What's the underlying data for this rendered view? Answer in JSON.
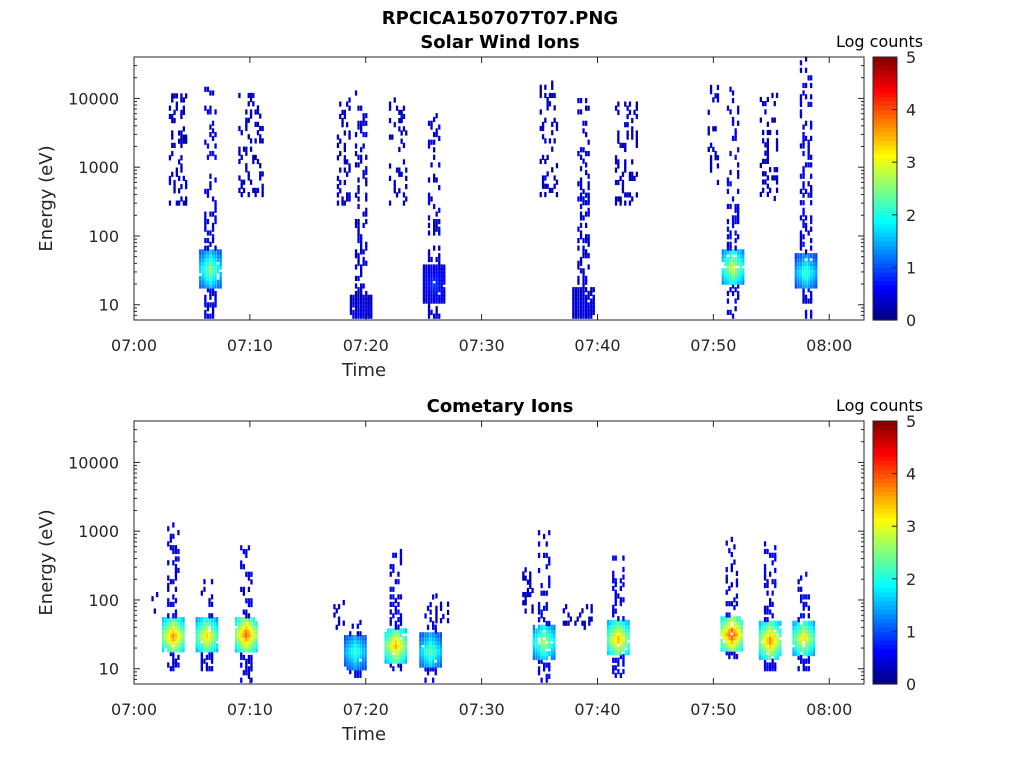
{
  "figure": {
    "title": "RPCICA150707T07.PNG"
  },
  "chart_data": [
    {
      "type": "heatmap",
      "title": "Solar Wind Ions",
      "xlabel": "Time",
      "ylabel": "Energy (eV)",
      "x_ticks": [
        "07:00",
        "07:10",
        "07:20",
        "07:30",
        "07:40",
        "07:50",
        "08:00"
      ],
      "x_range_minutes": [
        0,
        63
      ],
      "y_scale": "log",
      "y_ticks": [
        "10",
        "100",
        "1000",
        "10000"
      ],
      "ylim": [
        6,
        40000
      ],
      "colorbar": {
        "label": "Log counts",
        "ticks": [
          "0",
          "1",
          "2",
          "3",
          "4",
          "5"
        ],
        "range": [
          0,
          5
        ],
        "colormap": "jet"
      },
      "bursts": [
        {
          "t": 6.5,
          "emin": 6,
          "emax": 15000,
          "core_e": 33,
          "core_level": 2.6,
          "level": 0.3
        },
        {
          "t": 19.5,
          "emin": 6,
          "emax": 12000,
          "core_e": 8,
          "core_level": 0.6,
          "level": 0.2
        },
        {
          "t": 25.8,
          "emin": 6,
          "emax": 6000,
          "core_e": 20,
          "core_level": 0.9,
          "level": 0.2
        },
        {
          "t": 38.7,
          "emin": 6,
          "emax": 10000,
          "core_e": 10,
          "core_level": 0.6,
          "level": 0.2
        },
        {
          "t": 51.6,
          "emin": 6,
          "emax": 15000,
          "core_e": 35,
          "core_level": 3.0,
          "level": 0.3
        },
        {
          "t": 57.9,
          "emin": 6,
          "emax": 38000,
          "core_e": 30,
          "core_level": 2.2,
          "level": 0.3
        }
      ],
      "sparse_bands": [
        {
          "t0": 3.0,
          "t1": 4.5,
          "emin": 300,
          "emax": 12000
        },
        {
          "t0": 9.0,
          "t1": 11.0,
          "emin": 400,
          "emax": 12000
        },
        {
          "t0": 17.5,
          "t1": 18.5,
          "emin": 300,
          "emax": 10000
        },
        {
          "t0": 22.0,
          "t1": 23.5,
          "emin": 300,
          "emax": 10000
        },
        {
          "t0": 35.0,
          "t1": 36.5,
          "emin": 400,
          "emax": 20000
        },
        {
          "t0": 41.5,
          "t1": 43.5,
          "emin": 300,
          "emax": 9000
        },
        {
          "t0": 49.5,
          "t1": 50.5,
          "emin": 600,
          "emax": 15000
        },
        {
          "t0": 54.0,
          "t1": 55.5,
          "emin": 350,
          "emax": 12000
        }
      ]
    },
    {
      "type": "heatmap",
      "title": "Cometary Ions",
      "xlabel": "Time",
      "ylabel": "Energy (eV)",
      "x_ticks": [
        "07:00",
        "07:10",
        "07:20",
        "07:30",
        "07:40",
        "07:50",
        "08:00"
      ],
      "x_range_minutes": [
        0,
        63
      ],
      "y_scale": "log",
      "y_ticks": [
        "10",
        "100",
        "1000",
        "10000"
      ],
      "ylim": [
        6,
        40000
      ],
      "colorbar": {
        "label": "Log counts",
        "ticks": [
          "0",
          "1",
          "2",
          "3",
          "4",
          "5"
        ],
        "range": [
          0,
          5
        ],
        "colormap": "jet"
      },
      "bursts": [
        {
          "t": 3.3,
          "emin": 10,
          "emax": 1300,
          "core_e": 30,
          "core_level": 3.8,
          "level": 0.3
        },
        {
          "t": 6.2,
          "emin": 10,
          "emax": 250,
          "core_e": 30,
          "core_level": 3.4,
          "level": 0.3
        },
        {
          "t": 9.6,
          "emin": 6,
          "emax": 600,
          "core_e": 32,
          "core_level": 4.0,
          "level": 0.3
        },
        {
          "t": 19.0,
          "emin": 8,
          "emax": 50,
          "core_e": 18,
          "core_level": 2.2,
          "level": 0.3
        },
        {
          "t": 22.5,
          "emin": 10,
          "emax": 700,
          "core_e": 22,
          "core_level": 3.6,
          "level": 0.3
        },
        {
          "t": 25.5,
          "emin": 6,
          "emax": 120,
          "core_e": 18,
          "core_level": 2.4,
          "level": 0.3
        },
        {
          "t": 35.3,
          "emin": 6,
          "emax": 1000,
          "core_e": 25,
          "core_level": 2.8,
          "level": 0.3
        },
        {
          "t": 41.7,
          "emin": 8,
          "emax": 500,
          "core_e": 27,
          "core_level": 3.6,
          "level": 0.3
        },
        {
          "t": 51.5,
          "emin": 15,
          "emax": 800,
          "core_e": 32,
          "core_level": 4.2,
          "level": 0.3
        },
        {
          "t": 54.8,
          "emin": 10,
          "emax": 800,
          "core_e": 26,
          "core_level": 3.8,
          "level": 0.3
        },
        {
          "t": 57.7,
          "emin": 10,
          "emax": 250,
          "core_e": 28,
          "core_level": 3.3,
          "level": 0.3
        }
      ],
      "sparse_bands": [
        {
          "t0": 1.5,
          "t1": 2.0,
          "emin": 60,
          "emax": 200
        },
        {
          "t0": 17.2,
          "t1": 18.0,
          "emin": 40,
          "emax": 100
        },
        {
          "t0": 26.0,
          "t1": 27.0,
          "emin": 50,
          "emax": 120
        },
        {
          "t0": 33.5,
          "t1": 34.5,
          "emin": 60,
          "emax": 300
        },
        {
          "t0": 37.0,
          "t1": 39.5,
          "emin": 40,
          "emax": 90
        }
      ]
    }
  ]
}
